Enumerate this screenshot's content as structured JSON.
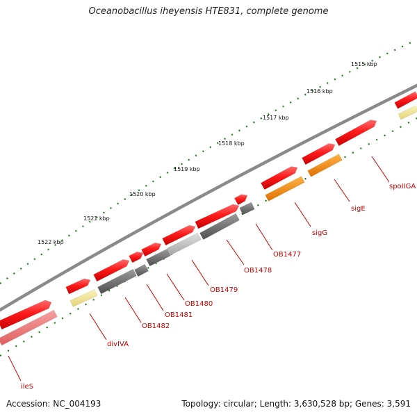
{
  "title": "Oceanobacillus iheyensis HTE831, complete genome",
  "footer": {
    "accession": "Accession: NC_004193",
    "summary": "Topology: circular; Length: 3,630,528 bp; Genes: 3,591"
  },
  "scale_labels": [
    "1515 kbp",
    "1516 kbp",
    "1517 kbp",
    "1518 kbp",
    "1519 kbp",
    "1520 kbp",
    "1521 kbp",
    "1522 kbp"
  ],
  "gene_labels": [
    "spoIIGA",
    "sigE",
    "sigG",
    "OB1477",
    "OB1478",
    "OB1479",
    "OB1480",
    "OB1481",
    "OB1482",
    "divIVA",
    "ileS"
  ],
  "colors": {
    "red_gene": "#ee1111",
    "orange_gene": "#ff8800",
    "yellow_gene": "#f0e68c",
    "gray_gene": "#707070",
    "light_gray_gene": "#c0c0c0",
    "pink_gene": "#ee7777",
    "backbone": "#888888",
    "tick_green": "#1a7a1a",
    "label_red": "#cc0000"
  }
}
